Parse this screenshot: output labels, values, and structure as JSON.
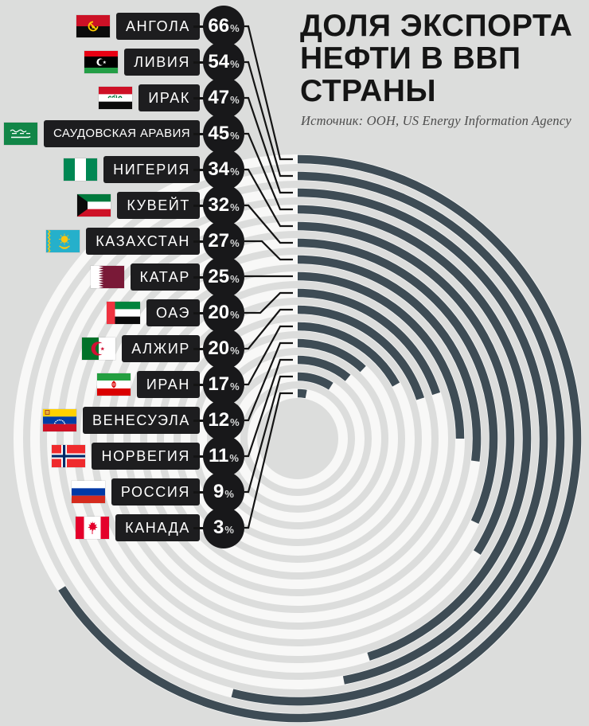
{
  "header": {
    "title_lines": [
      "ДОЛЯ ЭКСПОРТА",
      "НЕФТИ В ВВП",
      "СТРАНЫ"
    ],
    "source": "Источник: ООН, US Energy Information Agency"
  },
  "colors": {
    "background": "#dcdddc",
    "ring_track": "#f8f8f7",
    "ring_arc": "#3e4c55",
    "label_bg": "#1d1d1f",
    "badge_bg": "#18181a",
    "connector_line": "#141414",
    "title_text": "#151515",
    "source_text": "#4d4d4d"
  },
  "chart_data": {
    "type": "radial-bar",
    "title": "Доля экспорта нефти в ВВП страны",
    "source": "Источник: ООН, US Energy Information Agency",
    "unit": "%",
    "max_value": 100,
    "start_angle_deg": 0,
    "direction": "clockwise",
    "ring_order": "outermost ring = highest value",
    "categories": [
      "АНГОЛА",
      "ЛИВИЯ",
      "ИРАК",
      "САУДОВСКАЯ АРАВИЯ",
      "НИГЕРИЯ",
      "КУВЕЙТ",
      "КАЗАХСТАН",
      "КАТАР",
      "ОАЭ",
      "АЛЖИР",
      "ИРАН",
      "ВЕНЕСУЭЛА",
      "НОРВЕГИЯ",
      "РОССИЯ",
      "КАНАДА"
    ],
    "values": [
      66,
      54,
      47,
      45,
      34,
      32,
      27,
      25,
      20,
      20,
      17,
      12,
      11,
      9,
      3
    ],
    "flags": [
      "angola",
      "libya",
      "iraq",
      "saudi-arabia",
      "nigeria",
      "kuwait",
      "kazakhstan",
      "qatar",
      "uae",
      "algeria",
      "iran",
      "venezuela",
      "norway",
      "russia",
      "canada"
    ]
  }
}
